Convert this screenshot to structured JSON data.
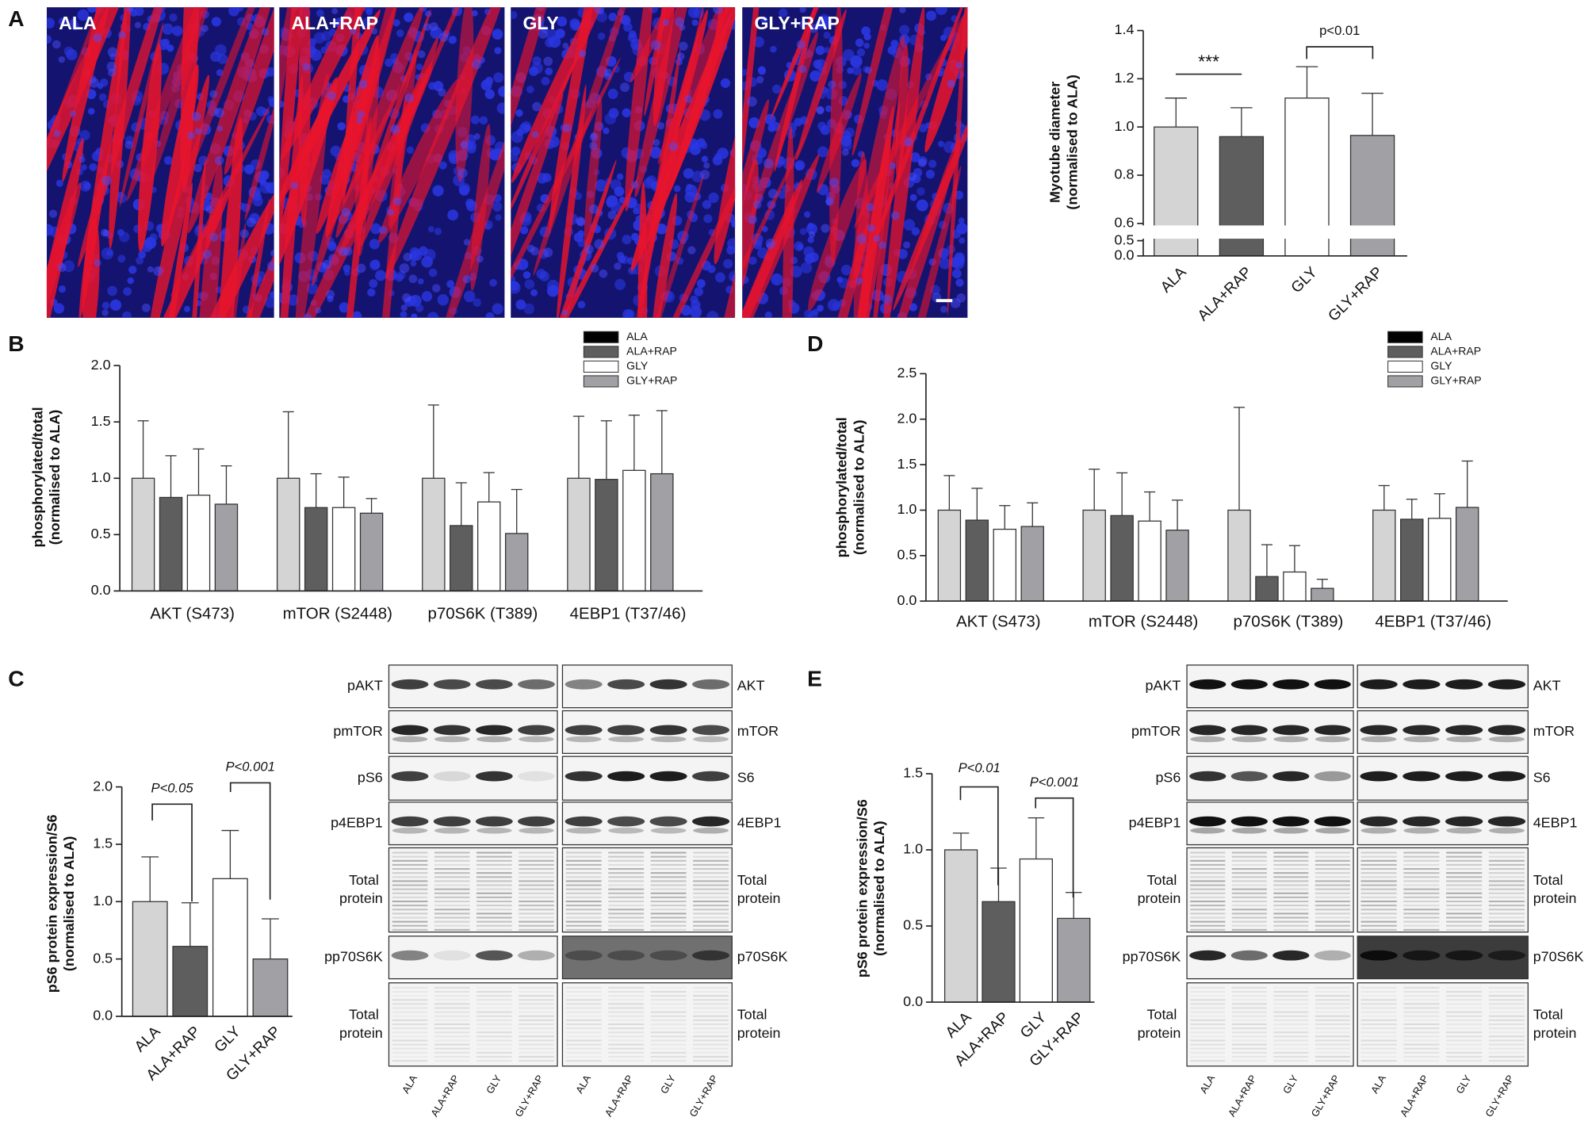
{
  "panels": [
    "A",
    "B",
    "C",
    "D",
    "E"
  ],
  "images": [
    "ALA",
    "ALA+RAP",
    "GLY",
    "GLY+RAP"
  ],
  "chart_data": [
    {
      "type": "bar",
      "ylabel": [
        "Myotube diameter",
        "(normalised to ALA)"
      ],
      "categories": [
        "ALA",
        "ALA+RAP",
        "GLY",
        "GLY+RAP"
      ],
      "values": [
        1,
        0.96,
        1.12,
        0.965
      ],
      "errors": [
        0.12,
        0.12,
        0.13,
        0.175
      ],
      "colors": [
        "#d4d4d4",
        "#5e5e5e",
        "#ffffff",
        "#a0a0a5"
      ],
      "ylim": [
        0.6,
        1.4
      ],
      "yticks": [
        0.6,
        0.8,
        {
          "value": 1,
          "label": "1.0"
        },
        1.2,
        1.4
      ],
      "lower_ylim": [
        0,
        0.5
      ],
      "lower_yticks": [
        {
          "value": 0,
          "label": "0.0"
        },
        0.5
      ],
      "annotations": [
        "***",
        "p<0.01"
      ]
    },
    {
      "type": "grouped_bar",
      "ylabel": [
        "phosphorylated/total",
        "(normalised to ALA)"
      ],
      "categories": [
        "AKT (S473)",
        "mTOR (S2448)",
        "p70S6K (T389)",
        "4EBP1 (T37/46)"
      ],
      "series": [
        {
          "name": "ALA",
          "color": "#d4d4d4",
          "legend_color": "#000000",
          "values": [
            1,
            1,
            1,
            1
          ],
          "errors": [
            0.51,
            0.59,
            0.65,
            0.55
          ]
        },
        {
          "name": "ALA+RAP",
          "color": "#5e5e5e",
          "legend_color": "#5e5e5e",
          "values": [
            0.83,
            0.74,
            0.58,
            0.99
          ],
          "errors": [
            0.37,
            0.3,
            0.38,
            0.52
          ]
        },
        {
          "name": "GLY",
          "color": "#ffffff",
          "legend_color": "#ffffff",
          "values": [
            0.85,
            0.74,
            0.79,
            1.07
          ],
          "errors": [
            0.41,
            0.27,
            0.26,
            0.49
          ]
        },
        {
          "name": "GLY+RAP",
          "color": "#a0a0a5",
          "legend_color": "#a0a0a5",
          "values": [
            0.77,
            0.69,
            0.51,
            1.04
          ],
          "errors": [
            0.34,
            0.13,
            0.39,
            0.56
          ]
        }
      ],
      "ylim": [
        0,
        2
      ],
      "yticks": [
        {
          "value": 0,
          "label": "0.0"
        },
        0.5,
        {
          "value": 1,
          "label": "1.0"
        },
        1.5,
        {
          "value": 2,
          "label": "2.0"
        }
      ],
      "legend": "upper right"
    },
    {
      "type": "bar",
      "ylabel": [
        "pS6 protein expression/S6",
        "(normalised to ALA)"
      ],
      "categories": [
        "ALA",
        "ALA+RAP",
        "GLY",
        "GLY+RAP"
      ],
      "values": [
        1,
        0.61,
        1.2,
        0.5
      ],
      "errors": [
        0.39,
        0.38,
        0.42,
        0.35
      ],
      "colors": [
        "#d4d4d4",
        "#5e5e5e",
        "#ffffff",
        "#a0a0a5"
      ],
      "ylim": [
        0,
        2
      ],
      "yticks": [
        {
          "value": 0,
          "label": "0.0"
        },
        0.5,
        {
          "value": 1,
          "label": "1.0"
        },
        1.5,
        {
          "value": 2,
          "label": "2.0"
        }
      ],
      "annotations": [
        "P<0.05",
        "P<0.001"
      ]
    },
    {
      "type": "grouped_bar",
      "ylabel": [
        "phosphorylated/total",
        "(normalised to ALA)"
      ],
      "categories": [
        "AKT (S473)",
        "mTOR (S2448)",
        "p70S6K (T389)",
        "4EBP1 (T37/46)"
      ],
      "series": [
        {
          "name": "ALA",
          "color": "#d4d4d4",
          "legend_color": "#000000",
          "values": [
            1,
            1,
            1,
            1
          ],
          "errors": [
            0.38,
            0.45,
            1.13,
            0.27
          ]
        },
        {
          "name": "ALA+RAP",
          "color": "#5e5e5e",
          "legend_color": "#5e5e5e",
          "values": [
            0.89,
            0.94,
            0.27,
            0.9
          ],
          "errors": [
            0.35,
            0.47,
            0.35,
            0.22
          ]
        },
        {
          "name": "GLY",
          "color": "#ffffff",
          "legend_color": "#ffffff",
          "values": [
            0.79,
            0.88,
            0.32,
            0.91
          ],
          "errors": [
            0.26,
            0.32,
            0.29,
            0.27
          ]
        },
        {
          "name": "GLY+RAP",
          "color": "#a0a0a5",
          "legend_color": "#a0a0a5",
          "values": [
            0.82,
            0.78,
            0.14,
            1.03
          ],
          "errors": [
            0.26,
            0.33,
            0.1,
            0.51
          ]
        }
      ],
      "ylim": [
        0,
        2.5
      ],
      "yticks": [
        {
          "value": 0,
          "label": "0.0"
        },
        0.5,
        {
          "value": 1,
          "label": "1.0"
        },
        1.5,
        {
          "value": 2,
          "label": "2.0"
        },
        2.5
      ],
      "legend": "upper right"
    },
    {
      "type": "bar",
      "ylabel": [
        "pS6 protein expression/S6",
        "(normalised to ALA)"
      ],
      "categories": [
        "ALA",
        "ALA+RAP",
        "GLY",
        "GLY+RAP"
      ],
      "values": [
        1,
        0.66,
        0.94,
        0.55
      ],
      "errors": [
        0.11,
        0.22,
        0.27,
        0.17
      ],
      "colors": [
        "#d4d4d4",
        "#5e5e5e",
        "#ffffff",
        "#a0a0a5"
      ],
      "ylim": [
        0,
        1.5
      ],
      "yticks": [
        {
          "value": 0,
          "label": "0.0"
        },
        0.5,
        {
          "value": 1,
          "label": "1.0"
        },
        1.5
      ],
      "annotations": [
        "P<0.01",
        "P<0.001"
      ]
    }
  ],
  "blots": [
    {
      "left_labels": [
        "pAKT",
        "pmTOR",
        "pS6",
        "p4EBP1",
        "Total protein",
        "pp70S6K",
        "Total protein"
      ],
      "right_labels": [
        "AKT",
        "mTOR",
        "S6",
        "4EBP1",
        "Total protein",
        "p70S6K",
        "Total protein"
      ],
      "lanes": [
        "ALA",
        "ALA+RAP",
        "GLY",
        "GLY+RAP"
      ]
    },
    {
      "left_labels": [
        "pAKT",
        "pmTOR",
        "pS6",
        "p4EBP1",
        "Total protein",
        "pp70S6K",
        "Total protein"
      ],
      "right_labels": [
        "AKT",
        "mTOR",
        "S6",
        "4EBP1",
        "Total protein",
        "p70S6K",
        "Total protein"
      ],
      "lanes": [
        "ALA",
        "ALA+RAP",
        "GLY",
        "GLY+RAP"
      ]
    }
  ]
}
